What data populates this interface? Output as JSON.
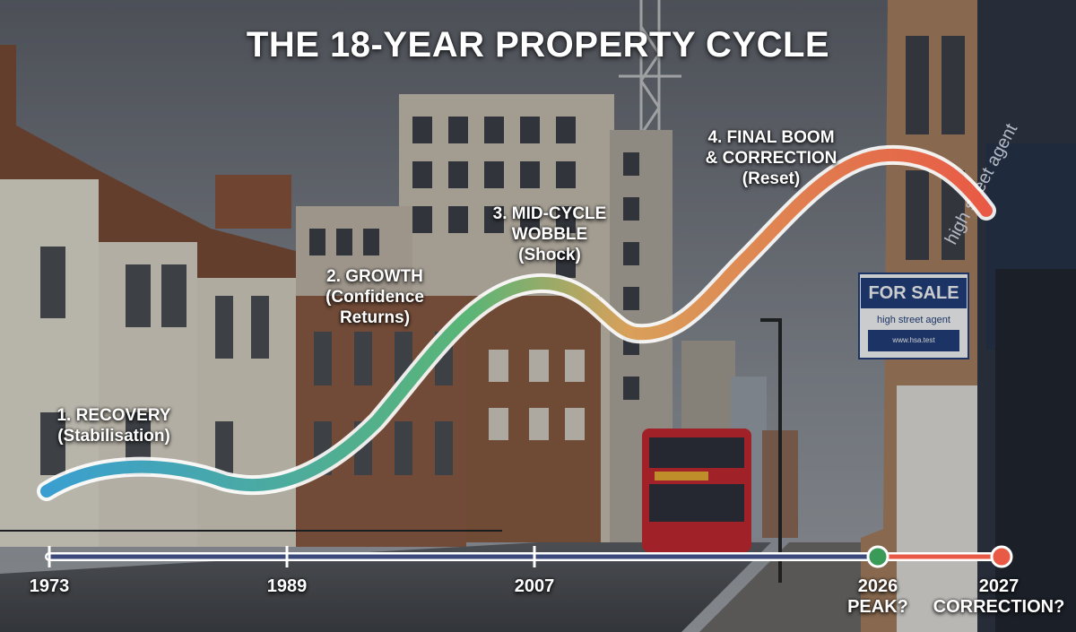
{
  "title": "THE 18-YEAR PROPERTY CYCLE",
  "phases": [
    {
      "line1": "1. RECOVERY",
      "line2": "(Stabilisation)",
      "line3": ""
    },
    {
      "line1": "2. GROWTH",
      "line2": "(Confidence",
      "line3": "Returns)"
    },
    {
      "line1": "3. MID-CYCLE",
      "line2": "WOBBLE",
      "line3": "(Shock)"
    },
    {
      "line1": "4. FINAL BOOM",
      "line2": "& CORRECTION",
      "line3": "(Reset)"
    }
  ],
  "timeline": [
    {
      "line1": "1973",
      "line2": ""
    },
    {
      "line1": "1989",
      "line2": ""
    },
    {
      "line1": "2007",
      "line2": ""
    },
    {
      "line1": "2026",
      "line2": "PEAK?"
    },
    {
      "line1": "2027",
      "line2": "CORRECTION?"
    }
  ],
  "sign": {
    "for_sale": "FOR SALE",
    "agent": "high street agent",
    "agent_url": "www.hsa.test",
    "shop": "high street agent"
  },
  "colors": {
    "curve_start": "#3a9fd0",
    "curve_mid": "#5ab576",
    "curve_end": "#e85a45",
    "timeline": "#3b4a7a",
    "peak_marker": "#3a9a58",
    "correction_marker": "#e85a45"
  }
}
